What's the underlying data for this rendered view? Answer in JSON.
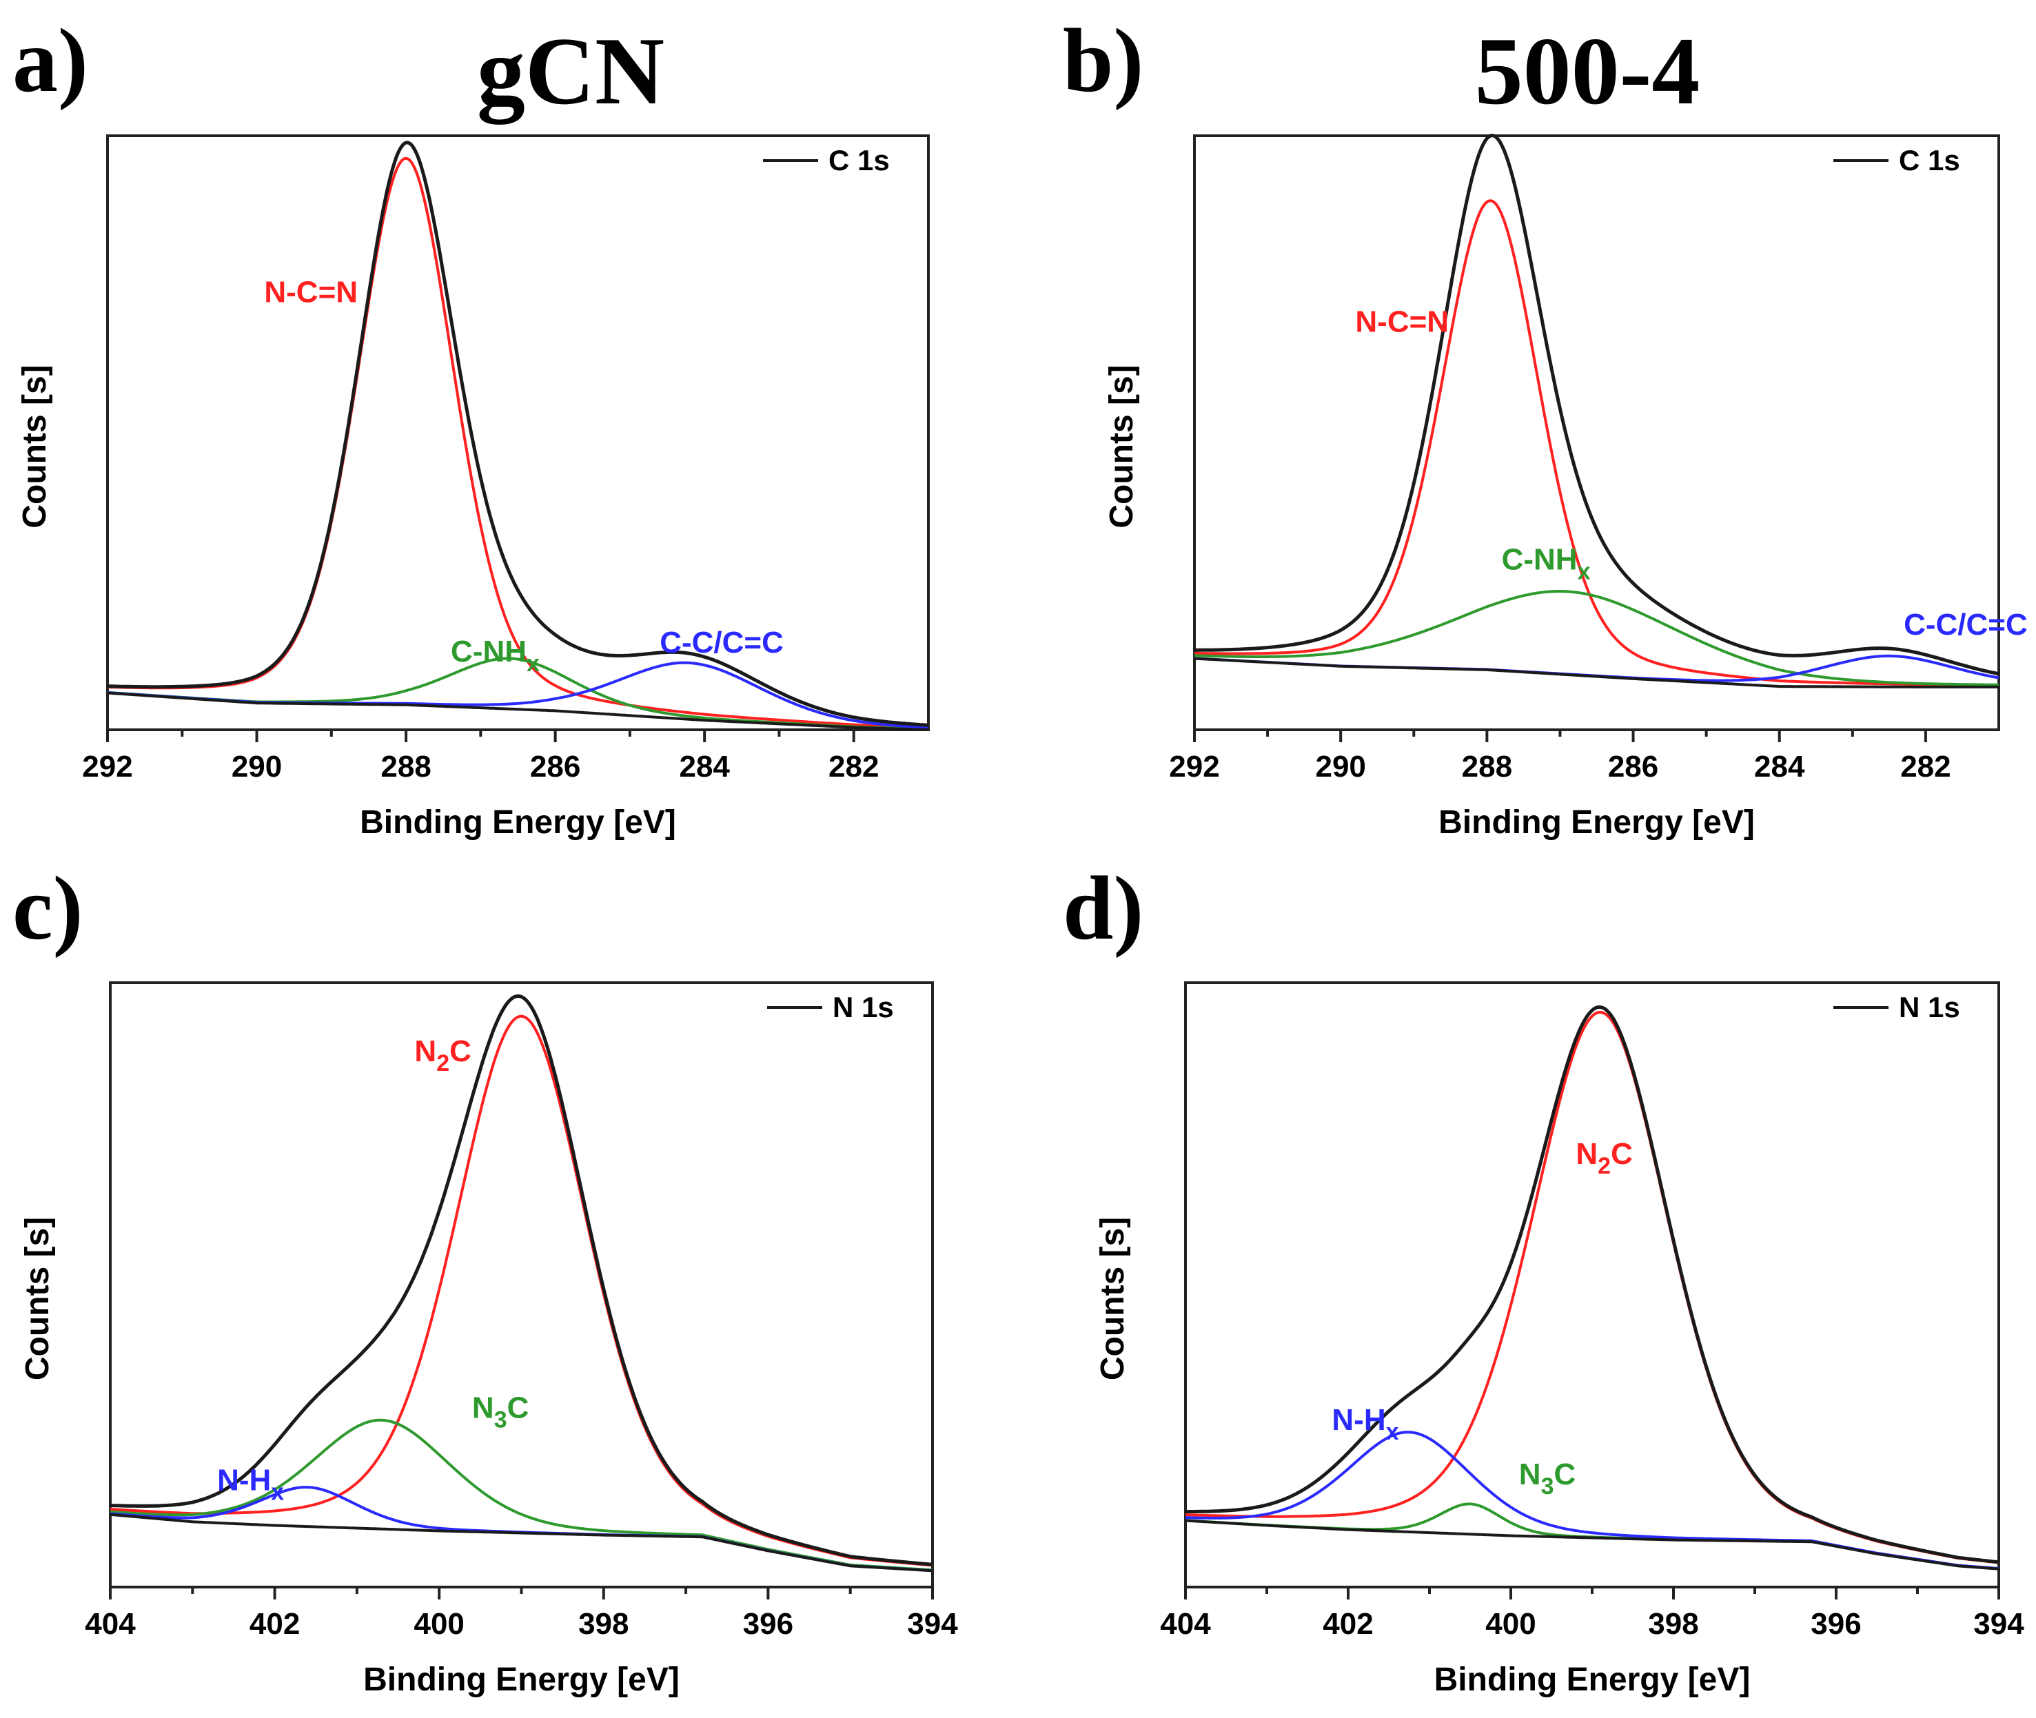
{
  "figure": {
    "column_titles": [
      "gCN",
      "500-4"
    ]
  },
  "colors": {
    "envelope": "#1a1a1a",
    "background": "#1a1a1a",
    "red": "#ff2020",
    "green": "#2e9a2e",
    "blue": "#2a2aff"
  },
  "chart_data": [
    {
      "panel": "a)",
      "type": "line",
      "xlabel": "Binding Energy [eV]",
      "ylabel": "Counts [s]",
      "xlim": [
        292,
        281
      ],
      "ylim": [
        0,
        1
      ],
      "xticks": [
        292,
        290,
        288,
        286,
        284,
        282
      ],
      "legend": {
        "label": "C 1s",
        "placement": "top-right"
      },
      "background": [
        [
          292,
          0.062
        ],
        [
          290,
          0.045
        ],
        [
          288,
          0.042
        ],
        [
          286,
          0.032
        ],
        [
          284,
          0.016
        ],
        [
          282,
          0.004
        ],
        [
          281,
          0.0
        ]
      ],
      "components": [
        {
          "label": "N-C=N",
          "color": "red",
          "center": 288.0,
          "height": 0.92,
          "fwhm": 1.55,
          "label_at": [
            289.9,
            0.72
          ]
        },
        {
          "label": "C-NH",
          "sub": "x",
          "color": "green",
          "center": 286.6,
          "height": 0.085,
          "fwhm": 2.0,
          "label_at": [
            287.4,
            0.115
          ]
        },
        {
          "label": "C-C/C=C",
          "color": "blue",
          "center": 284.2,
          "height": 0.095,
          "fwhm": 2.3,
          "label_at": [
            284.6,
            0.13
          ]
        }
      ]
    },
    {
      "panel": "b)",
      "type": "line",
      "xlabel": "Binding Energy [eV]",
      "ylabel": "Counts [s]",
      "xlim": [
        292,
        281
      ],
      "ylim": [
        0,
        1
      ],
      "xticks": [
        292,
        290,
        288,
        286,
        284,
        282
      ],
      "legend": {
        "label": "C 1s",
        "placement": "top-right"
      },
      "background": [
        [
          292,
          0.12
        ],
        [
          290,
          0.107
        ],
        [
          288,
          0.101
        ],
        [
          286,
          0.086
        ],
        [
          284,
          0.073
        ],
        [
          282,
          0.072
        ],
        [
          281,
          0.072
        ]
      ],
      "components": [
        {
          "label": "N-C=N",
          "color": "red",
          "center": 287.95,
          "height": 0.79,
          "fwhm": 1.6,
          "label_at": [
            289.8,
            0.67
          ]
        },
        {
          "label": "C-NH",
          "sub": "x",
          "color": "green",
          "center": 286.9,
          "height": 0.14,
          "fwhm": 3.6,
          "label_at": [
            287.8,
            0.27
          ]
        },
        {
          "label": "C-C/C=C",
          "color": "blue",
          "center": 282.5,
          "height": 0.052,
          "fwhm": 2.2,
          "label_at": [
            282.3,
            0.16
          ]
        }
      ]
    },
    {
      "panel": "c)",
      "type": "line",
      "xlabel": "Binding Energy [eV]",
      "ylabel": "Counts [s]",
      "xlim": [
        404,
        394
      ],
      "ylim": [
        0,
        1
      ],
      "xticks": [
        404,
        402,
        400,
        398,
        396,
        394
      ],
      "legend": {
        "label": "N 1s",
        "placement": "top-right"
      },
      "background": [
        [
          404,
          0.12
        ],
        [
          403,
          0.108
        ],
        [
          402,
          0.102
        ],
        [
          400,
          0.093
        ],
        [
          398,
          0.086
        ],
        [
          396.8,
          0.083
        ],
        [
          396,
          0.06
        ],
        [
          395,
          0.035
        ],
        [
          394,
          0.027
        ]
      ],
      "components": [
        {
          "label": "N",
          "sub": "2",
          "suffix": "C",
          "color": "red",
          "center": 399.0,
          "height": 0.855,
          "fwhm": 1.9,
          "label_at": [
            400.3,
            0.87
          ]
        },
        {
          "label": "N",
          "sub": "3",
          "suffix": "C",
          "color": "green",
          "center": 400.7,
          "height": 0.18,
          "fwhm": 2.0,
          "label_at": [
            399.6,
            0.28
          ]
        },
        {
          "label": "N-H",
          "sub": "x",
          "color": "blue",
          "center": 401.6,
          "height": 0.065,
          "fwhm": 1.4,
          "label_at": [
            402.7,
            0.16
          ]
        }
      ]
    },
    {
      "panel": "d)",
      "type": "line",
      "xlabel": "Binding Energy [eV]",
      "ylabel": "Counts [s]",
      "xlim": [
        404,
        394
      ],
      "ylim": [
        0,
        1
      ],
      "xticks": [
        404,
        402,
        400,
        398,
        396,
        394
      ],
      "legend": {
        "label": "N 1s",
        "placement": "top-right"
      },
      "background": [
        [
          404,
          0.11
        ],
        [
          403,
          0.102
        ],
        [
          402,
          0.095
        ],
        [
          400,
          0.085
        ],
        [
          398,
          0.078
        ],
        [
          396.3,
          0.075
        ],
        [
          395.5,
          0.055
        ],
        [
          394.5,
          0.035
        ],
        [
          394,
          0.03
        ]
      ],
      "components": [
        {
          "label": "N",
          "sub": "2",
          "suffix": "C",
          "color": "red",
          "center": 398.9,
          "height": 0.87,
          "fwhm": 2.0,
          "label_at": [
            399.2,
            0.7
          ]
        },
        {
          "label": "N",
          "sub": "3",
          "suffix": "C",
          "color": "green",
          "center": 400.5,
          "height": 0.05,
          "fwhm": 0.9,
          "label_at": [
            399.9,
            0.17
          ]
        },
        {
          "label": "N-H",
          "sub": "x",
          "color": "blue",
          "center": 401.25,
          "height": 0.165,
          "fwhm": 1.8,
          "label_at": [
            402.2,
            0.26
          ]
        }
      ]
    }
  ]
}
